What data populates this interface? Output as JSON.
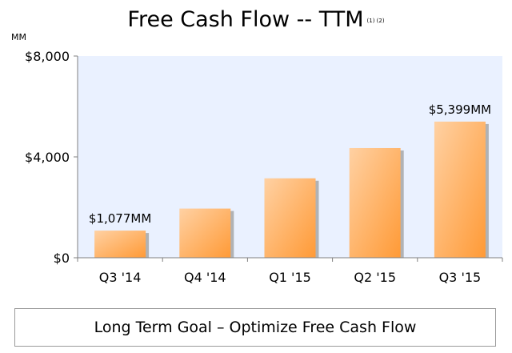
{
  "title": "Free Cash Flow -- TTM",
  "title_notes": "(1) (2)",
  "units": "MM",
  "goal": "Long Term Goal – Optimize Free Cash Flow",
  "colors": {
    "plot_bg": "#EAF1FF",
    "bar_light": "#FFD1A3",
    "bar_dark": "#FF9A36",
    "shadow": "#9C9C9C",
    "axis": "#808080"
  },
  "chart_data": {
    "type": "bar",
    "title": "Free Cash Flow -- TTM",
    "categories": [
      "Q3 '14",
      "Q4 '14",
      "Q1 '15",
      "Q2 '15",
      "Q3 '15"
    ],
    "values": [
      1077,
      1950,
      3150,
      4350,
      5399
    ],
    "ylim": [
      0,
      8000
    ],
    "yticks": [
      0,
      4000,
      8000
    ],
    "ytick_labels": [
      "$0",
      "$4,000",
      "$8,000"
    ],
    "data_labels": {
      "0": "$1,077MM",
      "4": "$5,399MM"
    },
    "grid": false,
    "legend": "none"
  }
}
